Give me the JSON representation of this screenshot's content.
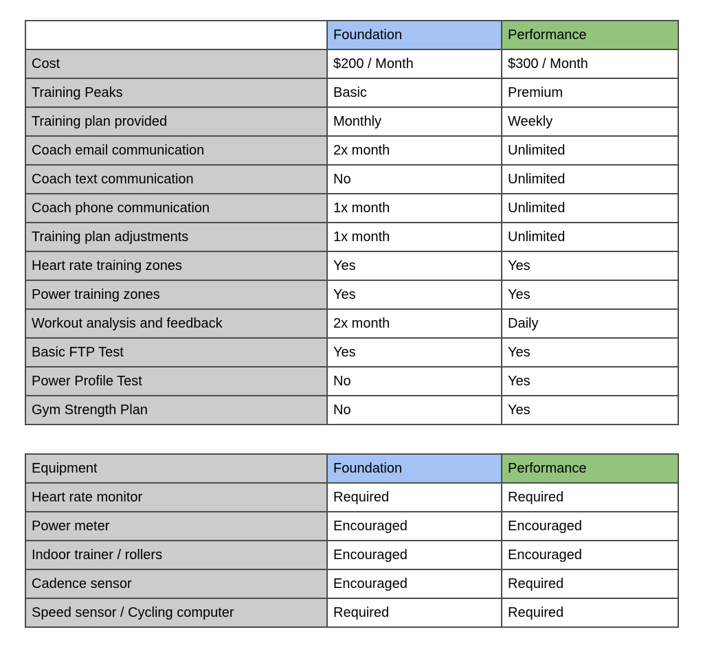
{
  "colors": {
    "foundation_header": "#a4c2f4",
    "performance_header": "#93c47d",
    "label_cell": "#cccccc",
    "border": "#4d4d4d",
    "text": "#000000"
  },
  "plans_table": {
    "header": [
      "",
      "Foundation",
      "Performance"
    ],
    "rows": [
      [
        "Cost",
        "$200 / Month",
        "$300 / Month"
      ],
      [
        "Training Peaks",
        "Basic",
        "Premium"
      ],
      [
        "Training plan provided",
        "Monthly",
        "Weekly"
      ],
      [
        "Coach email communication",
        "2x month",
        "Unlimited"
      ],
      [
        "Coach text communication",
        "No",
        "Unlimited"
      ],
      [
        "Coach phone communication",
        "1x month",
        "Unlimited"
      ],
      [
        "Training plan adjustments",
        "1x month",
        "Unlimited"
      ],
      [
        "Heart rate training zones",
        "Yes",
        "Yes"
      ],
      [
        "Power training zones",
        "Yes",
        "Yes"
      ],
      [
        "Workout analysis and feedback",
        "2x month",
        "Daily"
      ],
      [
        "Basic FTP Test",
        "Yes",
        "Yes"
      ],
      [
        "Power Profile Test",
        "No",
        "Yes"
      ],
      [
        "Gym Strength Plan",
        "No",
        "Yes"
      ]
    ]
  },
  "equipment_table": {
    "header": [
      "Equipment",
      "Foundation",
      "Performance"
    ],
    "rows": [
      [
        "Heart rate monitor",
        "Required",
        "Required"
      ],
      [
        "Power meter",
        "Encouraged",
        "Encouraged"
      ],
      [
        "Indoor trainer / rollers",
        "Encouraged",
        "Encouraged"
      ],
      [
        "Cadence sensor",
        "Encouraged",
        "Required"
      ],
      [
        "Speed sensor / Cycling computer",
        "Required",
        "Required"
      ]
    ]
  }
}
